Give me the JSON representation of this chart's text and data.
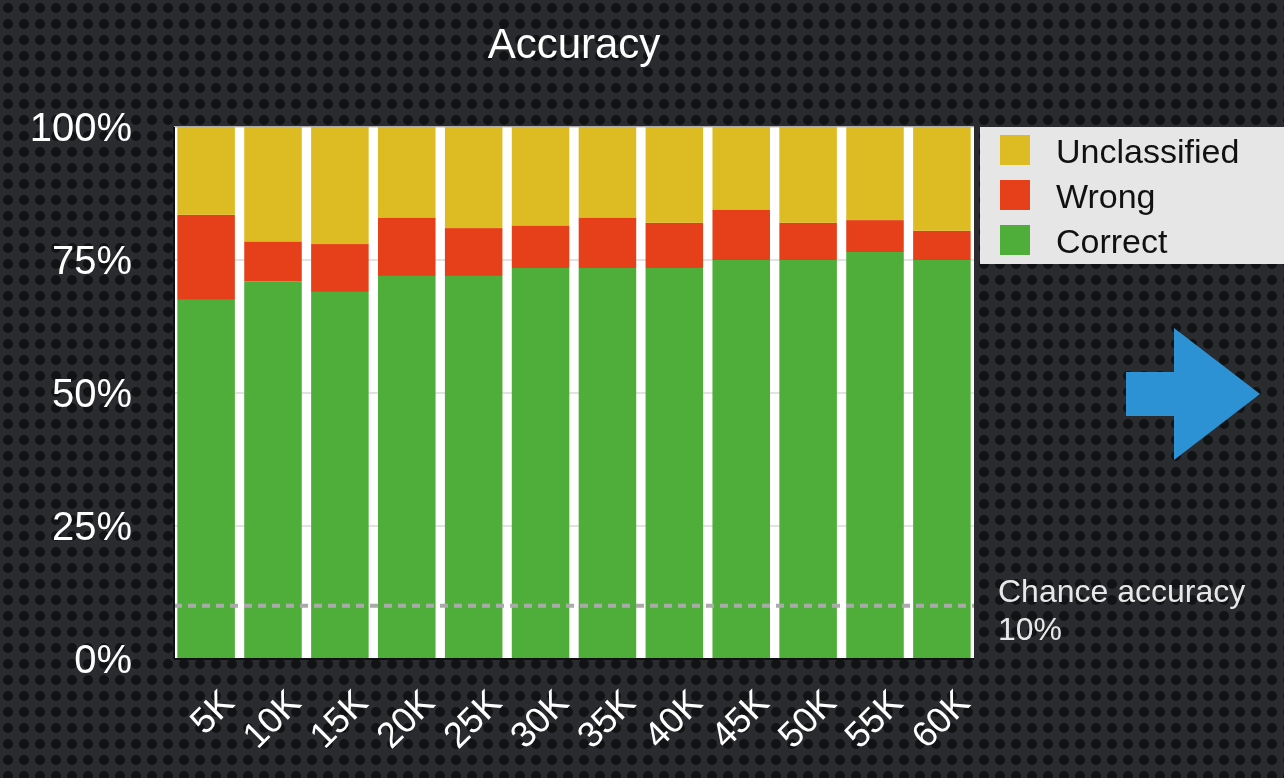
{
  "chart_data": {
    "type": "bar",
    "title": "Accuracy",
    "stacked": true,
    "categories": [
      "5K",
      "10K",
      "15K",
      "20K",
      "25K",
      "30K",
      "35K",
      "40K",
      "45K",
      "50K",
      "55K",
      "60K"
    ],
    "series": [
      {
        "name": "Correct",
        "color": "#4fae3a",
        "values": [
          67.5,
          71,
          69,
          72,
          72,
          73.5,
          73.5,
          73.5,
          75,
          75,
          76.5,
          75
        ]
      },
      {
        "name": "Wrong",
        "color": "#e5401a",
        "values": [
          16,
          7.5,
          9,
          11,
          9,
          8,
          9.5,
          8.5,
          9.5,
          7,
          6,
          5.5
        ]
      },
      {
        "name": "Unclassified",
        "color": "#dcbc22",
        "values": [
          16.5,
          21.5,
          22,
          17,
          19,
          18.5,
          17,
          18,
          15.5,
          18,
          17.5,
          19.5
        ]
      }
    ],
    "ylim": [
      0,
      100
    ],
    "yticks": [
      {
        "value": 0,
        "label": "0%"
      },
      {
        "value": 25,
        "label": "25%"
      },
      {
        "value": 50,
        "label": "50%"
      },
      {
        "value": 75,
        "label": "75%"
      },
      {
        "value": 100,
        "label": "100%"
      }
    ],
    "grid": "y",
    "legend": "top right",
    "ref_lines": [
      {
        "axis": "y",
        "value": 10,
        "label": "Chance accuracy 10%",
        "color": "#aaaaaa",
        "line_style": "dashed"
      }
    ]
  }
}
